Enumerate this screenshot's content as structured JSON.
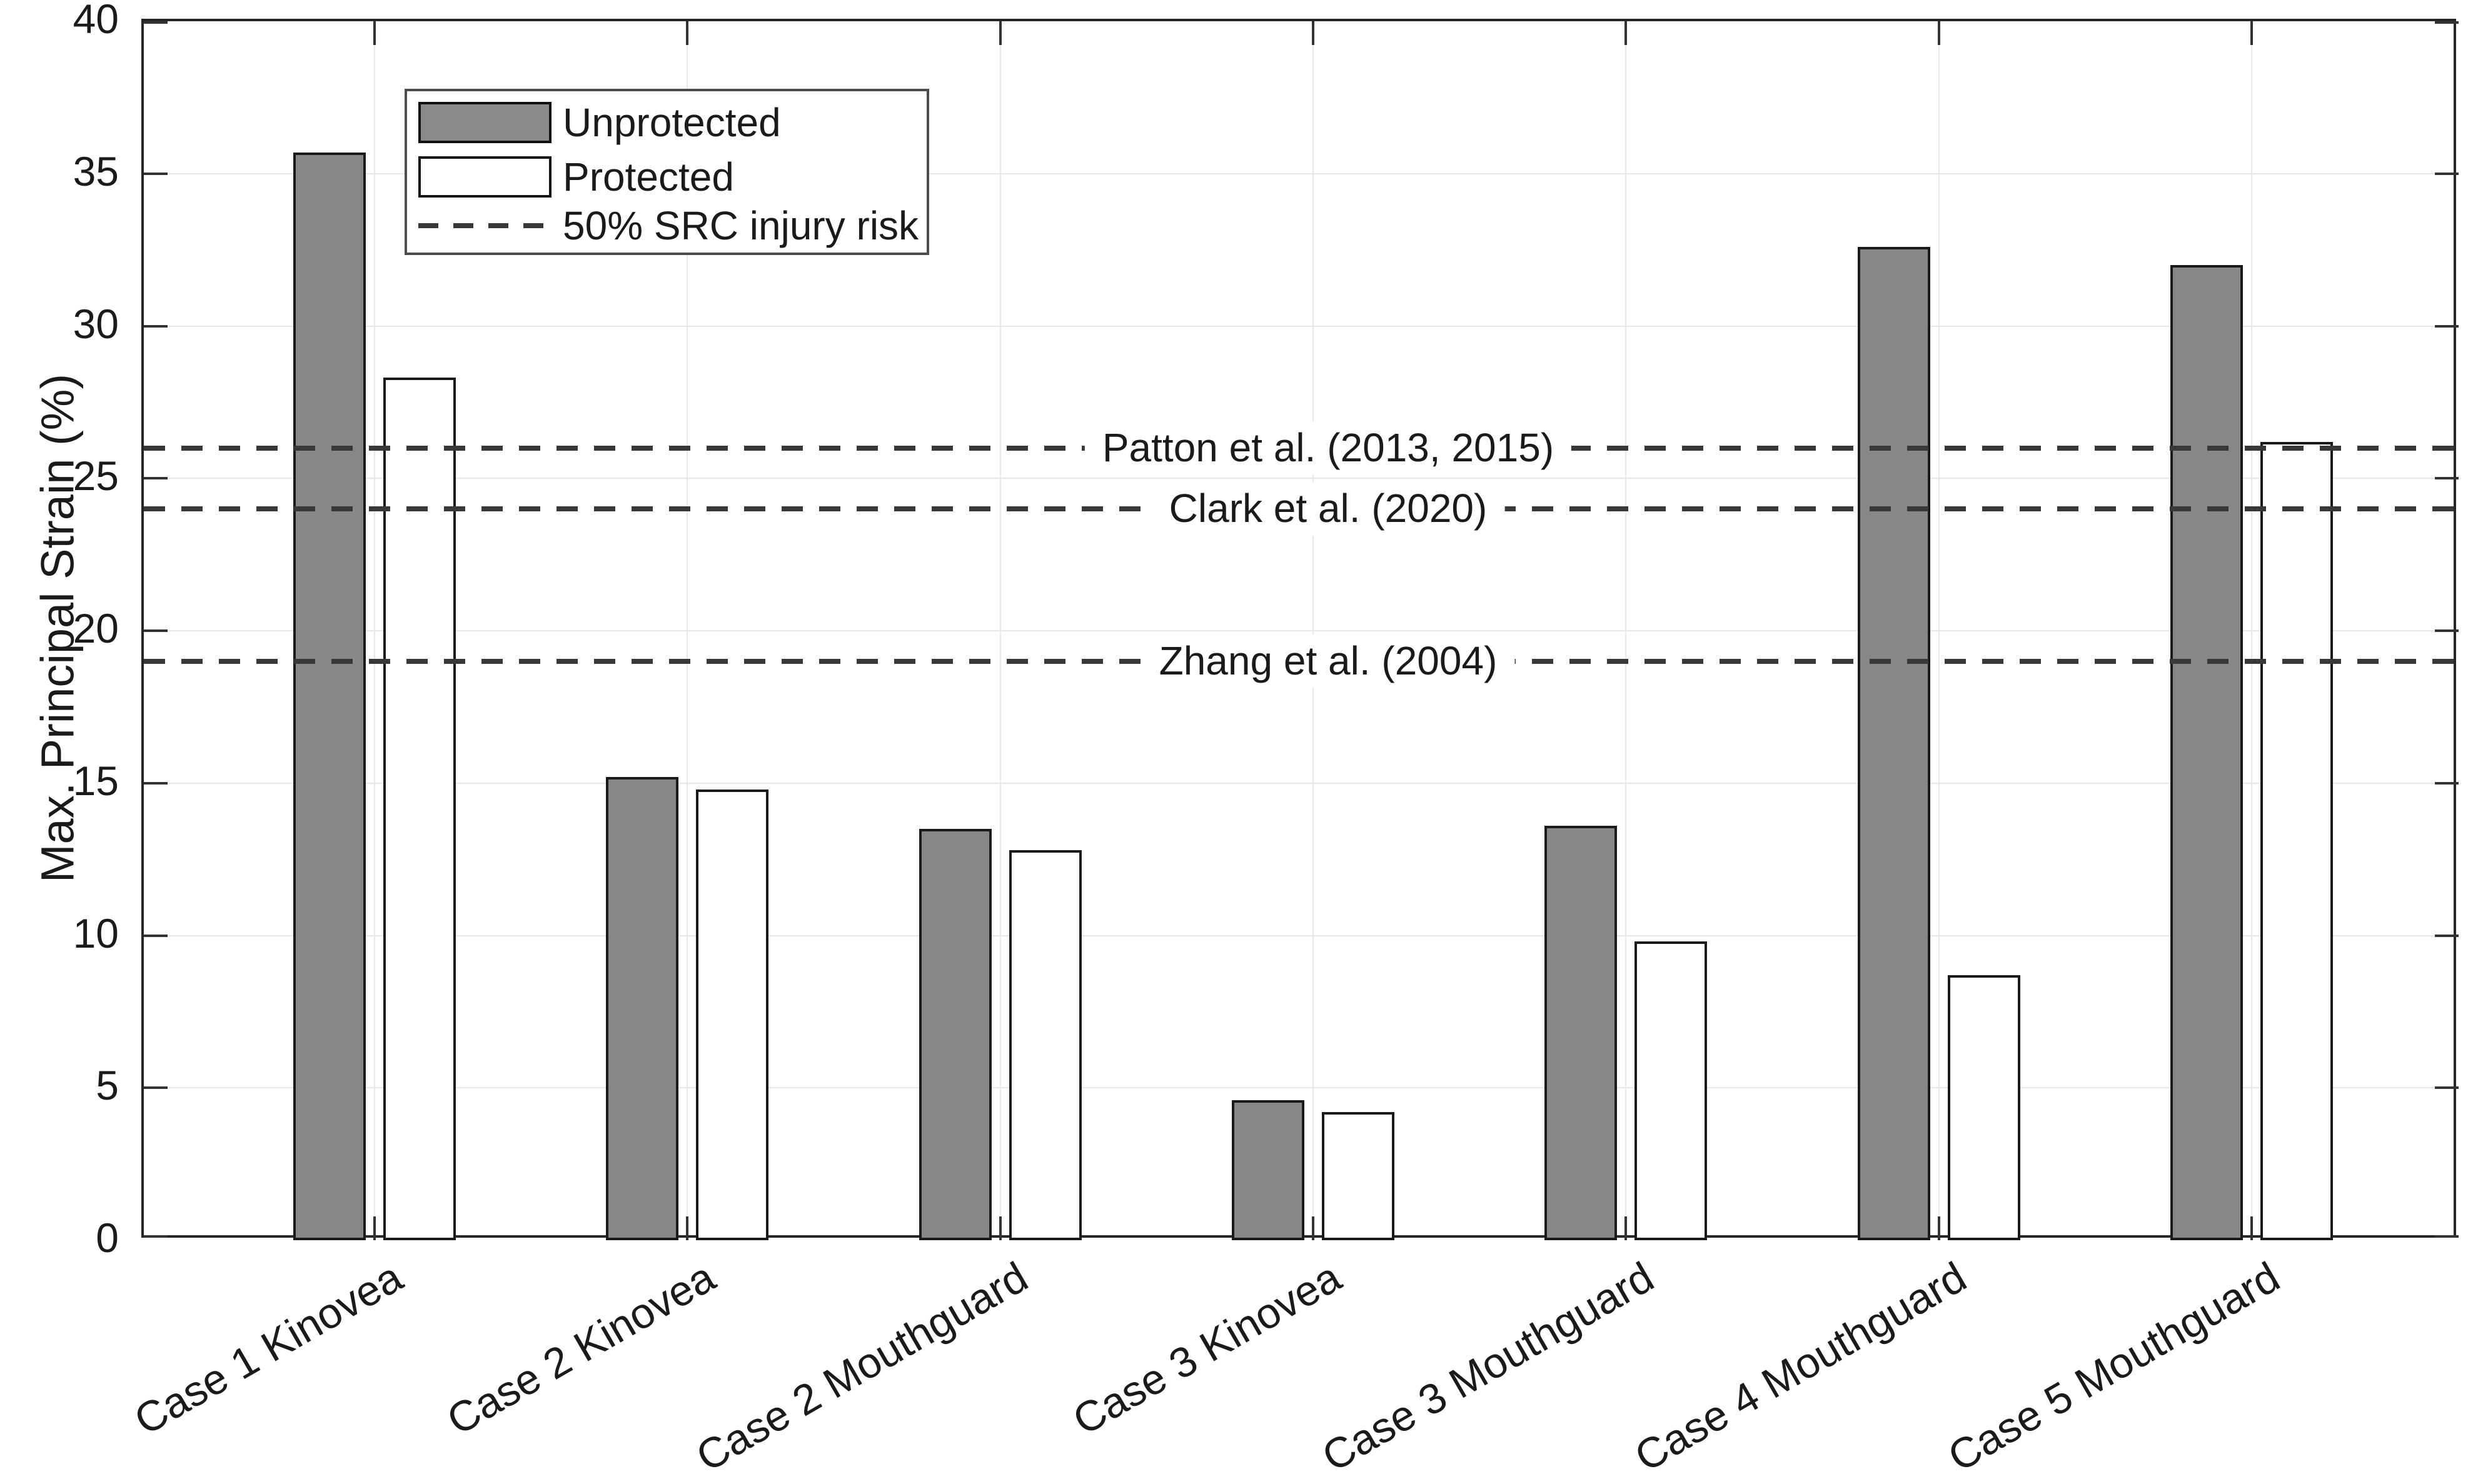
{
  "chart_data": {
    "type": "bar",
    "title": "",
    "xlabel": "",
    "ylabel": "Max. Principal Strain (%)",
    "ylim": [
      0,
      40
    ],
    "yticks": [
      0,
      5,
      10,
      15,
      20,
      25,
      30,
      35,
      40
    ],
    "grid": "on",
    "legend_position": "top-left-inside",
    "categories": [
      "Case 1 Kinovea",
      "Case 2 Kinovea",
      "Case 2 Mouthguard",
      "Case 3 Kinovea",
      "Case 3 Mouthguard",
      "Case 4 Mouthguard",
      "Case 5 Mouthguard"
    ],
    "series": [
      {
        "name": "Unprotected",
        "values": [
          35.7,
          15.2,
          13.5,
          4.6,
          13.6,
          32.6,
          32.0
        ]
      },
      {
        "name": "Protected",
        "values": [
          28.3,
          14.8,
          12.8,
          4.2,
          9.8,
          8.7,
          26.2
        ]
      }
    ],
    "ref_lines": [
      {
        "label": "Patton et al. (2013, 2015)",
        "value": 26
      },
      {
        "label": "Clark et al. (2020)",
        "value": 24
      },
      {
        "label": "Zhang et al. (2004)",
        "value": 19
      }
    ]
  },
  "legend": {
    "items": [
      {
        "label": "Unprotected",
        "swatch": "gray-filled-rect"
      },
      {
        "label": "Protected",
        "swatch": "white-rect"
      },
      {
        "label": "50% SRC injury risk",
        "swatch": "dashed-line"
      }
    ]
  },
  "colors": {
    "unprotected_fill": "#878787",
    "protected_fill": "#ffffff",
    "bar_edge": "#1a1a1a",
    "axis": "#262626",
    "grid": "#e8e8e8",
    "ref_line": "#383838",
    "text": "#1a1a1a",
    "background": "#ffffff"
  }
}
